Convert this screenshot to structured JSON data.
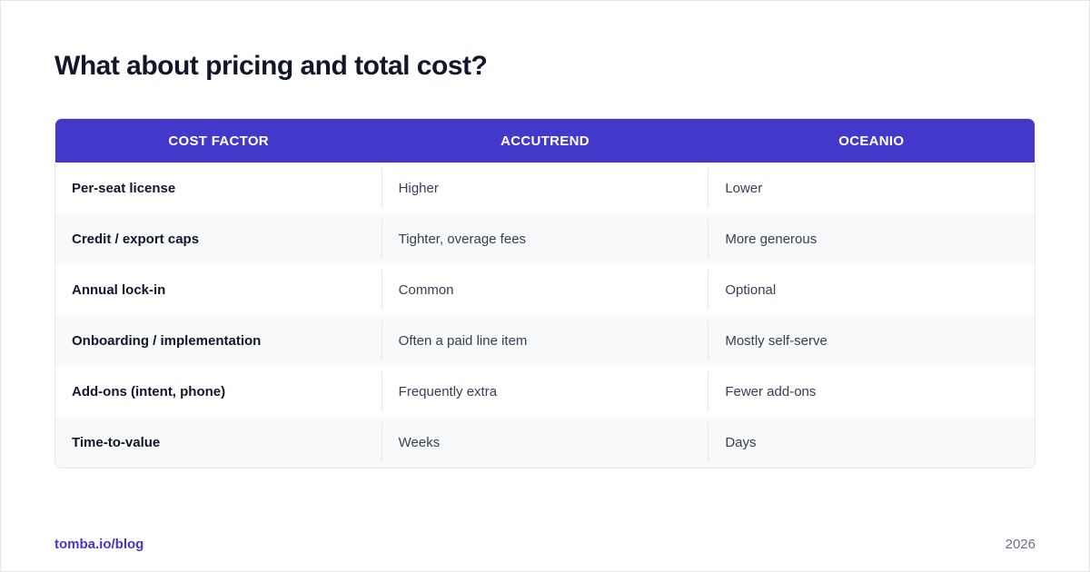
{
  "title": "What about pricing and total cost?",
  "table": {
    "headers": [
      "COST FACTOR",
      "ACCUTREND",
      "OCEANIO"
    ],
    "rows": [
      [
        "Per-seat license",
        "Higher",
        "Lower"
      ],
      [
        "Credit / export caps",
        "Tighter, overage fees",
        "More generous"
      ],
      [
        "Annual lock-in",
        "Common",
        "Optional"
      ],
      [
        "Onboarding / implementation",
        "Often a paid line item",
        "Mostly self-serve"
      ],
      [
        "Add-ons (intent, phone)",
        "Frequently extra",
        "Fewer add-ons"
      ],
      [
        "Time-to-value",
        "Weeks",
        "Days"
      ]
    ]
  },
  "footer": {
    "link": "tomba.io/blog",
    "year": "2026"
  },
  "colors": {
    "header_bg": "#4338ca",
    "accent": "#4338ca",
    "alt_row_bg": "#f8f9fb"
  }
}
